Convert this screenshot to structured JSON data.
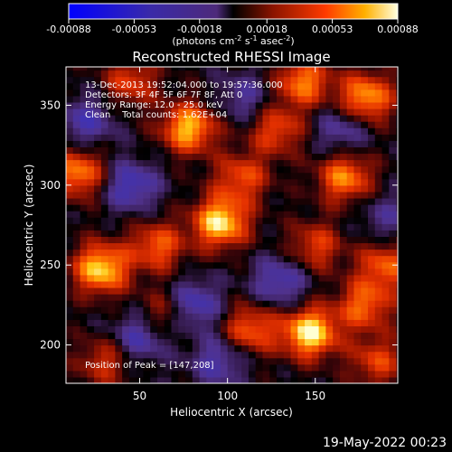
{
  "chart_data": {
    "type": "heatmap",
    "title": "Reconstructed RHESSI Image",
    "xlabel": "Heliocentric X (arcsec)",
    "ylabel": "Heliocentric Y (arcsec)",
    "xlim": [
      8,
      197
    ],
    "ylim": [
      176,
      374
    ],
    "x_ticks": [
      50,
      100,
      150
    ],
    "y_ticks": [
      200,
      250,
      300,
      350
    ],
    "colorbar": {
      "range": [
        -0.00088,
        0.00088
      ],
      "tick_values": [
        -0.00088,
        -0.00053,
        -0.00018,
        0.00018,
        0.00053,
        0.00088
      ],
      "tick_labels": [
        "-0.00088",
        "-0.00053",
        "-0.00018",
        "0.00018",
        "0.00053",
        "0.00088"
      ],
      "unit_label_parts": [
        "(photons cm",
        "-2",
        " s",
        "-1",
        " asec",
        "-2",
        ")"
      ]
    },
    "annotations": [
      "13-Dec-2013 19:52:04.000 to 19:57:36.000",
      "Detectors: 3F 4F 5F 6F 7F 8F, Att 0",
      "Energy Range: 12.0 - 25.0 keV",
      "Clean    Total counts: 1.62E+04"
    ],
    "peak_text": "Position of Peak = [147,208]",
    "peak_position": [
      147,
      208
    ],
    "sources": [
      {
        "x": 147,
        "y": 208,
        "intensity": 1.0
      },
      {
        "x": 28,
        "y": 248,
        "intensity": 0.92
      },
      {
        "x": 96,
        "y": 277,
        "intensity": 0.95
      },
      {
        "x": 78,
        "y": 336,
        "intensity": 0.85
      },
      {
        "x": 179,
        "y": 355,
        "intensity": 0.8
      },
      {
        "x": 143,
        "y": 365,
        "intensity": 0.7
      },
      {
        "x": 167,
        "y": 305,
        "intensity": 0.72
      },
      {
        "x": 15,
        "y": 308,
        "intensity": 0.72
      },
      {
        "x": 113,
        "y": 210,
        "intensity": 0.62
      },
      {
        "x": 60,
        "y": 262,
        "intensity": 0.6
      },
      {
        "x": 178,
        "y": 225,
        "intensity": 0.62
      },
      {
        "x": 190,
        "y": 250,
        "intensity": 0.6
      },
      {
        "x": 128,
        "y": 335,
        "intensity": 0.55
      },
      {
        "x": 45,
        "y": 365,
        "intensity": 0.5
      },
      {
        "x": 108,
        "y": 305,
        "intensity": 0.55
      },
      {
        "x": 30,
        "y": 190,
        "intensity": 0.45
      },
      {
        "x": 150,
        "y": 262,
        "intensity": 0.5
      },
      {
        "x": 65,
        "y": 220,
        "intensity": 0.45
      },
      {
        "x": 185,
        "y": 190,
        "intensity": 0.5
      },
      {
        "x": 45,
        "y": 300,
        "intensity": -0.55
      },
      {
        "x": 80,
        "y": 225,
        "intensity": -0.6
      },
      {
        "x": 50,
        "y": 205,
        "intensity": -0.5
      },
      {
        "x": 130,
        "y": 240,
        "intensity": -0.5
      },
      {
        "x": 165,
        "y": 335,
        "intensity": -0.4
      },
      {
        "x": 20,
        "y": 340,
        "intensity": -0.45
      },
      {
        "x": 110,
        "y": 355,
        "intensity": -0.35
      },
      {
        "x": 95,
        "y": 190,
        "intensity": -0.45
      },
      {
        "x": 190,
        "y": 280,
        "intensity": -0.3
      }
    ]
  },
  "footer": {
    "date": "19-May-2022 00:23"
  }
}
